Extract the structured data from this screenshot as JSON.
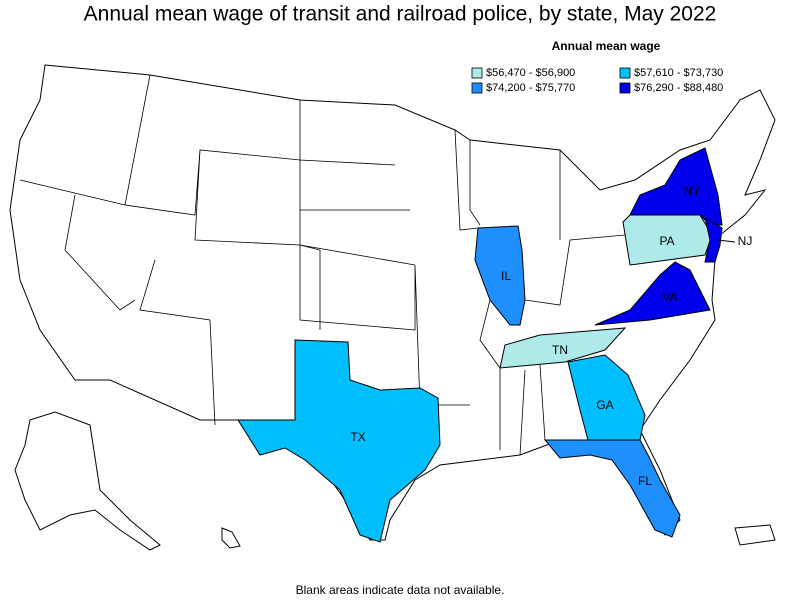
{
  "title": "Annual mean wage of transit and railroad police, by state, May 2022",
  "legend": {
    "title": "Annual mean wage",
    "items": [
      {
        "label": "$56,470 - $56,900",
        "color": "#aeeaea"
      },
      {
        "label": "$57,610 - $73,730",
        "color": "#00bfff"
      },
      {
        "label": "$74,200 - $75,770",
        "color": "#1e8fff"
      },
      {
        "label": "$76,290 - $88,480",
        "color": "#0000ee"
      }
    ]
  },
  "states": [
    {
      "label": "NY",
      "color": "#0000ee"
    },
    {
      "label": "PA",
      "color": "#aeeaea"
    },
    {
      "label": "NJ",
      "color": "#0000ee"
    },
    {
      "label": "IL",
      "color": "#1e8fff"
    },
    {
      "label": "VA",
      "color": "#0000ee"
    },
    {
      "label": "TN",
      "color": "#aeeaea"
    },
    {
      "label": "GA",
      "color": "#00bfff"
    },
    {
      "label": "TX",
      "color": "#00bfff"
    },
    {
      "label": "FL",
      "color": "#1e8fff"
    }
  ],
  "footnote": "Blank areas indicate data not available."
}
